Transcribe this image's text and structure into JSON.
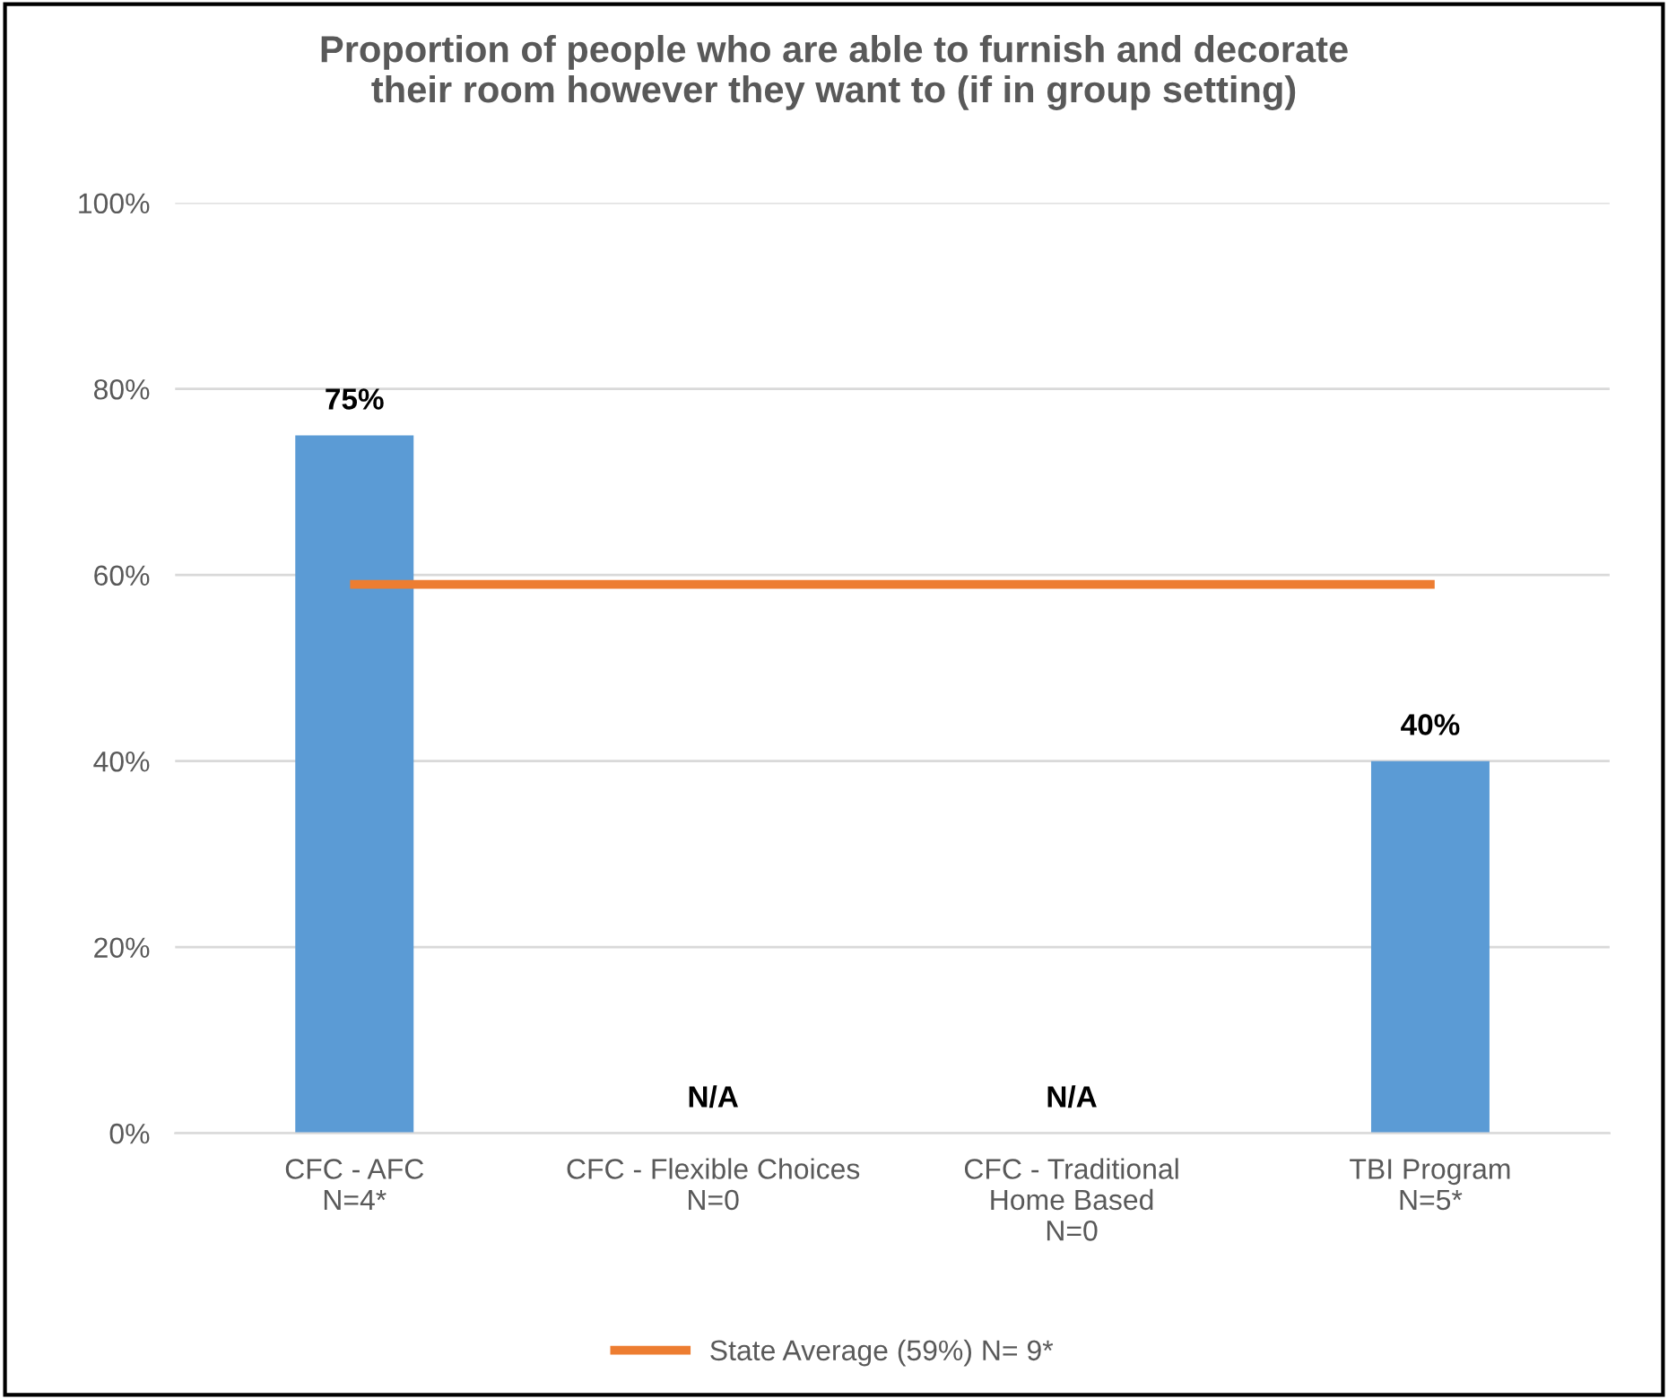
{
  "chart_data": {
    "type": "bar",
    "title": "Proportion of people who are able to furnish and decorate\ntheir room however they want to (if in group setting)",
    "categories": [
      "CFC - AFC\nN=4*",
      "CFC - Flexible Choices\nN=0",
      "CFC - Traditional\nHome Based\nN=0",
      "TBI Program\nN=5*"
    ],
    "series": [
      {
        "color": "#5b9bd5",
        "values": [
          75,
          null,
          null,
          40
        ],
        "value_labels": [
          "75%",
          "N/A",
          "N/A",
          "40%"
        ]
      },
      {
        "type": "line",
        "name": "State Average (59%) N= 9*",
        "color": "#ed7d31",
        "values": [
          59,
          59,
          59,
          59
        ]
      }
    ],
    "ylim": [
      0,
      100
    ],
    "yticks": [
      {
        "value": 0,
        "label": "0%"
      },
      {
        "value": 20,
        "label": "20%"
      },
      {
        "value": 40,
        "label": "40%"
      },
      {
        "value": 60,
        "label": "60%"
      },
      {
        "value": 80,
        "label": "80%"
      },
      {
        "value": 100,
        "label": "100%"
      }
    ],
    "grid": "y",
    "legend": "bottom",
    "marker": "none",
    "line_style": "solid"
  }
}
